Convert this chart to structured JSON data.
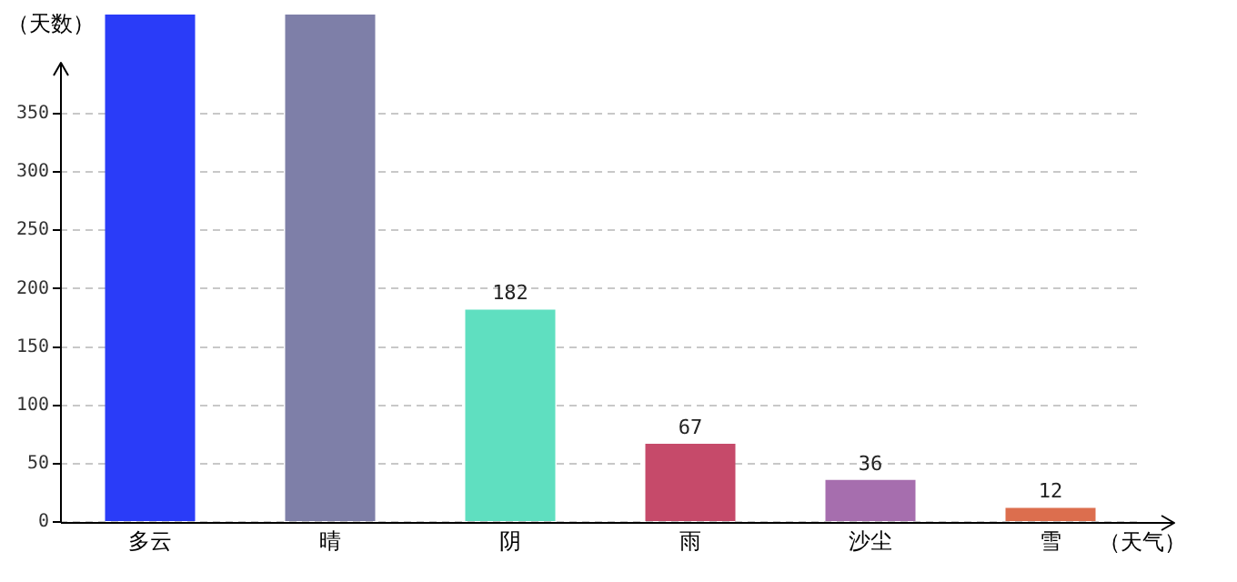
{
  "chart_data": {
    "type": "bar",
    "xlabel": "（天气）",
    "ylabel": "（天数）",
    "categories": [
      "多云",
      "晴",
      "阴",
      "雨",
      "沙尘",
      "雪"
    ],
    "values": [
      435,
      435,
      182,
      67,
      36,
      12
    ],
    "colors": [
      "#2a3cf8",
      "#7e7fa8",
      "#5fdfc0",
      "#c64a6a",
      "#a66eae",
      "#dc6e4e"
    ],
    "value_labels": [
      null,
      null,
      "182",
      "67",
      "36",
      "12"
    ],
    "ylim": [
      0,
      435
    ],
    "yticks": [
      0,
      50,
      100,
      150,
      200,
      250,
      300,
      350
    ],
    "grid": "y"
  }
}
